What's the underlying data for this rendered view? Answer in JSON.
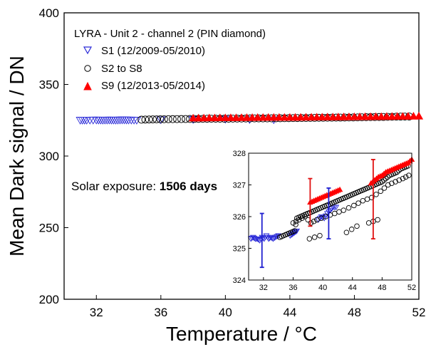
{
  "chart_data": [
    {
      "type": "scatter",
      "title": "",
      "xlabel": "Temperature / °C",
      "ylabel": "Mean Dark signal / DN",
      "xlim": [
        30,
        52
      ],
      "ylim": [
        200,
        400
      ],
      "xticks": [
        32,
        36,
        40,
        44,
        48,
        52
      ],
      "yticks": [
        200,
        250,
        300,
        350,
        400
      ],
      "grid": false,
      "legend_title": "LYRA - Unit 2 - channel 2 (PIN diamond)",
      "legend_position": "top-left",
      "annotation": {
        "prefix": "Solar exposure: ",
        "value": "1506 days"
      },
      "series": [
        {
          "name": "S1 (12/2009-05/2010)",
          "marker": "triangle-down-open",
          "color": "#2a2ad8",
          "x": [
            31.0,
            31.4,
            32.0,
            32.4,
            32.8,
            33.2,
            33.6,
            34.0,
            34.5,
            36.0,
            38.0,
            40.0,
            41.5,
            43.0
          ],
          "y": [
            325.1,
            325.1,
            325.2,
            325.1,
            325.2,
            325.1,
            325.3,
            325.2,
            325.1,
            325.4,
            325.6,
            325.8,
            325.5,
            325.4
          ]
        },
        {
          "name": "S2 to S8",
          "marker": "circle-open",
          "color": "#000000",
          "x": [
            34.8,
            35.5,
            36.2,
            37.0,
            37.8,
            38.6,
            39.4,
            40.2,
            41.0,
            41.8,
            42.6,
            43.4,
            44.2,
            45.0,
            45.8,
            46.6,
            47.4,
            48.2,
            49.0,
            49.8,
            50.6,
            51.4
          ],
          "y": [
            325.4,
            325.6,
            325.7,
            325.8,
            325.9,
            326.0,
            326.1,
            326.1,
            326.2,
            326.3,
            326.3,
            326.4,
            326.5,
            326.6,
            326.7,
            326.8,
            326.9,
            327.0,
            327.2,
            327.3,
            327.5,
            327.6
          ]
        },
        {
          "name": "S9 (12/2013-05/2014)",
          "marker": "triangle-up-filled",
          "color": "#ff0000",
          "x": [
            38.0,
            39.0,
            40.0,
            41.0,
            42.0,
            43.0,
            44.0,
            45.0,
            46.0,
            47.0,
            48.0,
            49.0,
            50.0,
            51.0,
            52.0
          ],
          "y": [
            326.4,
            326.5,
            326.6,
            326.7,
            326.8,
            326.9,
            326.9,
            327.0,
            327.1,
            327.2,
            327.3,
            327.4,
            327.5,
            327.6,
            327.8
          ]
        }
      ]
    },
    {
      "type": "scatter",
      "title": "",
      "xlabel": "",
      "ylabel": "",
      "xlim": [
        30,
        52
      ],
      "ylim": [
        324,
        328
      ],
      "xticks": [
        32,
        36,
        40,
        44,
        48,
        52
      ],
      "yticks": [
        324,
        325,
        326,
        327,
        328
      ],
      "grid": false,
      "error_bars": [
        {
          "x": 31.8,
          "center": 325.25,
          "low": 324.4,
          "high": 326.1,
          "color": "#1f1fd0"
        },
        {
          "x": 38.3,
          "center": 326.2,
          "low": 325.7,
          "high": 327.2,
          "color": "#e01010"
        },
        {
          "x": 40.8,
          "center": 326.0,
          "low": 325.3,
          "high": 326.9,
          "color": "#1f1fd0"
        },
        {
          "x": 46.8,
          "center": 326.6,
          "low": 325.3,
          "high": 327.8,
          "color": "#e01010"
        }
      ],
      "series": [
        {
          "name": "S1 (12/2009-05/2010)",
          "marker": "triangle-down-open",
          "color": "#2a2ad8",
          "x": [
            30.3,
            30.6,
            30.9,
            31.2,
            31.5,
            31.8,
            32.1,
            32.4,
            32.7,
            33.0,
            33.3,
            33.6,
            34.0,
            35.6,
            35.9,
            36.2,
            36.5,
            39.4,
            39.8,
            40.2,
            40.6,
            41.0,
            41.4,
            41.8
          ],
          "y": [
            325.3,
            325.35,
            325.3,
            325.3,
            325.25,
            325.35,
            325.3,
            325.4,
            325.3,
            325.35,
            325.3,
            325.35,
            325.4,
            325.4,
            325.45,
            325.5,
            325.55,
            325.9,
            326.0,
            325.95,
            326.1,
            326.2,
            326.3,
            326.3
          ]
        },
        {
          "name": "S2 to S8",
          "marker": "circle-open",
          "color": "#000000",
          "x": [
            34.2,
            34.7,
            35.2,
            35.7,
            36.2,
            36.5,
            37.0,
            37.5,
            38.0,
            38.5,
            39.0,
            39.5,
            40.0,
            40.5,
            41.0,
            41.5,
            42.0,
            42.5,
            43.0,
            43.5,
            44.0,
            44.5,
            45.0,
            45.5,
            46.0,
            46.5,
            47.0,
            47.5,
            48.0,
            48.5,
            49.0,
            49.5,
            50.0,
            50.5,
            51.0,
            51.5,
            36.0,
            36.8,
            37.6,
            38.4,
            39.2,
            40.4,
            41.6,
            42.8,
            44.2,
            45.4,
            46.6,
            47.8,
            48.8,
            49.8,
            50.8,
            51.6,
            38.2,
            39.6,
            43.2,
            44.6,
            46.2,
            47.4
          ],
          "y": [
            325.35,
            325.4,
            325.45,
            325.5,
            325.55,
            325.95,
            326.0,
            326.05,
            326.1,
            326.15,
            326.2,
            326.25,
            326.3,
            326.35,
            326.4,
            326.45,
            326.5,
            326.55,
            326.6,
            326.65,
            326.7,
            326.75,
            326.8,
            326.85,
            326.9,
            326.95,
            327.0,
            327.05,
            327.1,
            327.2,
            327.3,
            327.35,
            327.4,
            327.5,
            327.55,
            327.6,
            325.8,
            325.9,
            326.0,
            325.8,
            325.9,
            326.0,
            326.1,
            326.2,
            326.35,
            326.5,
            326.6,
            326.8,
            327.0,
            327.1,
            327.2,
            327.3,
            325.3,
            325.4,
            325.5,
            325.7,
            325.8,
            325.9
          ]
        },
        {
          "name": "S9 (12/2013-05/2014)",
          "marker": "triangle-up-filled",
          "color": "#ff0000",
          "x": [
            38.3,
            38.8,
            39.3,
            39.8,
            40.3,
            40.8,
            41.3,
            41.8,
            42.3,
            46.5,
            47.0,
            47.5,
            48.0,
            48.5,
            49.0,
            49.5,
            50.0,
            50.5,
            51.0,
            51.5,
            52.0
          ],
          "y": [
            326.45,
            326.5,
            326.55,
            326.6,
            326.65,
            326.7,
            326.75,
            326.8,
            326.85,
            327.05,
            327.15,
            327.25,
            327.3,
            327.4,
            327.45,
            327.5,
            327.55,
            327.6,
            327.65,
            327.7,
            327.8
          ]
        }
      ]
    }
  ]
}
